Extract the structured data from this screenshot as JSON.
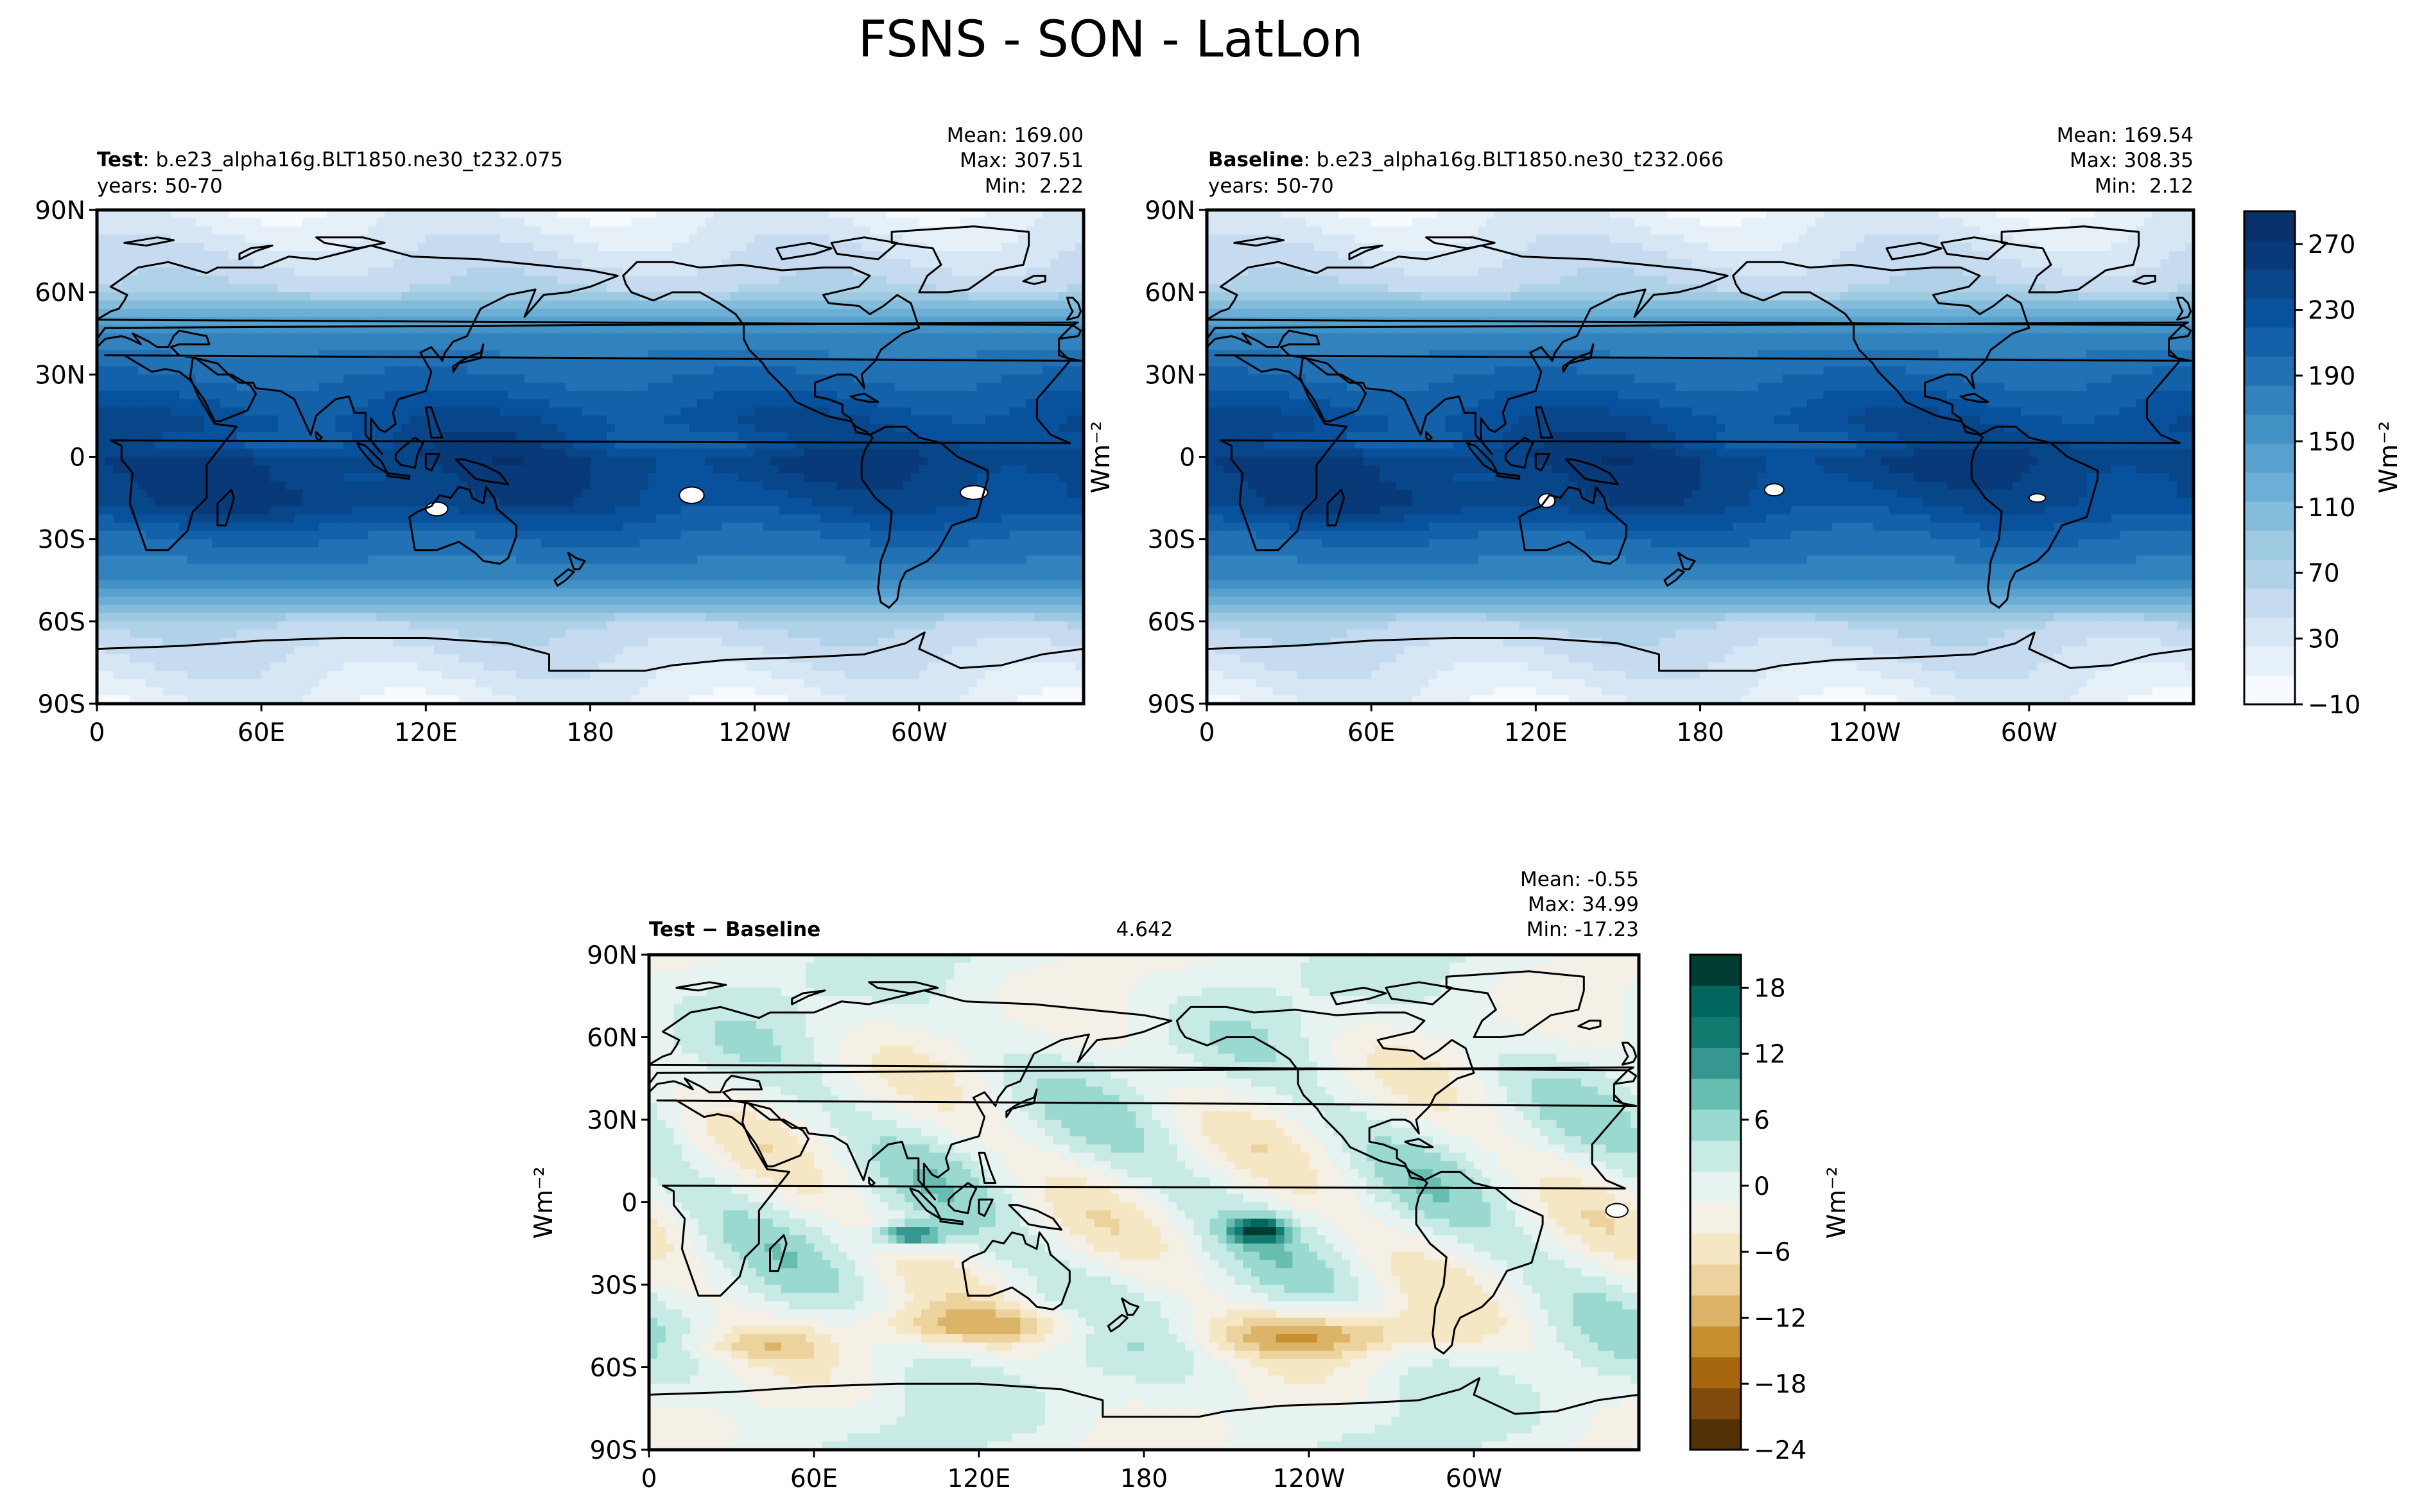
{
  "figure": {
    "title": "FSNS - SON - LatLon"
  },
  "geo_ticks": {
    "lat": [
      "90N",
      "60N",
      "30N",
      "0",
      "30S",
      "60S",
      "90S"
    ],
    "lon": [
      "0",
      "60E",
      "120E",
      "180",
      "120W",
      "60W"
    ]
  },
  "colors": {
    "blues": [
      "#f7fbff",
      "#e6f0f9",
      "#d6e6f4",
      "#c6dbef",
      "#b0d2e8",
      "#9ecae1",
      "#84bcdc",
      "#6baed6",
      "#58a1cf",
      "#4292c6",
      "#3182bd",
      "#2171b5",
      "#1361a9",
      "#08519c",
      "#08468a",
      "#083a7a",
      "#08306b"
    ],
    "brbg": [
      "#543005",
      "#7f4a0b",
      "#a6670f",
      "#c6902e",
      "#dbb468",
      "#ecd29c",
      "#f5e6c4",
      "#f5f0e6",
      "#e6f3f1",
      "#c7eae5",
      "#99d9cf",
      "#66bdb0",
      "#35978f",
      "#0f7a6d",
      "#01665e",
      "#003c30"
    ],
    "land_outline": "#000000",
    "missing": "#ffffff"
  },
  "chart_data": [
    {
      "type": "heatmap",
      "panel": "test",
      "label_bold": "Test",
      "label_rest": ": b.e23_alpha16g.BLT1850.ne30_t232.075",
      "subtitle": "years: 50-70",
      "stats": [
        "Mean: 169.00",
        "Max: 307.51",
        "Min:  2.22"
      ],
      "x_range_deg": [
        0,
        360
      ],
      "y_range_deg": [
        -90,
        90
      ],
      "mean": 169.0,
      "max": 307.51,
      "min": 2.22
    },
    {
      "type": "heatmap",
      "panel": "baseline",
      "label_bold": "Baseline",
      "label_rest": ": b.e23_alpha16g.BLT1850.ne30_t232.066",
      "subtitle": "years: 50-70",
      "stats": [
        "Mean: 169.54",
        "Max: 308.35",
        "Min:  2.12"
      ],
      "x_range_deg": [
        0,
        360
      ],
      "y_range_deg": [
        -90,
        90
      ],
      "mean": 169.54,
      "max": 308.35,
      "min": 2.12
    },
    {
      "type": "heatmap",
      "panel": "difference",
      "label_bold": "Test − Baseline",
      "rmse": 4.642,
      "stats": [
        "Mean: -0.55",
        "Max: 34.99",
        "Min: -17.23"
      ],
      "x_range_deg": [
        0,
        360
      ],
      "y_range_deg": [
        -90,
        90
      ],
      "mean": -0.55,
      "max": 34.99,
      "min": -17.23
    }
  ],
  "colorbars": {
    "main": {
      "unit": "Wm⁻²",
      "range": [
        -10,
        290
      ],
      "tick_values": [
        -10,
        30,
        70,
        110,
        150,
        190,
        230,
        270
      ],
      "tick_labels": [
        "−10",
        "30",
        "70",
        "110",
        "150",
        "190",
        "230",
        "270"
      ]
    },
    "diff": {
      "unit": "Wm⁻²",
      "range": [
        -24,
        21
      ],
      "tick_values": [
        -24,
        -18,
        -12,
        -6,
        0,
        6,
        12,
        18
      ],
      "tick_labels": [
        "−24",
        "−18",
        "−12",
        "−6",
        "0",
        "6",
        "12",
        "18"
      ]
    }
  },
  "side_units": {
    "top_between": "Wm⁻²",
    "diff_left": "Wm⁻²"
  }
}
